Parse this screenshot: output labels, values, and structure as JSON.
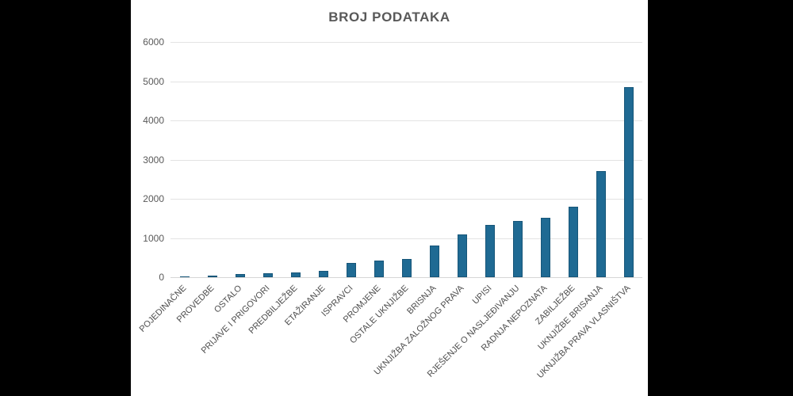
{
  "window": {
    "letterbox_color": "#000000",
    "canvas_color": "#ffffff"
  },
  "chart_data": {
    "type": "bar",
    "title": "BROJ PODATAKA",
    "xlabel": "",
    "ylabel": "",
    "legend_position": "none",
    "grid": "horizontal",
    "ylim": [
      0,
      6000
    ],
    "yticks": [
      0,
      1000,
      2000,
      3000,
      4000,
      5000,
      6000
    ],
    "categories": [
      "POJEDINAČNE",
      "PROVEDBE",
      "OSTALO",
      "PRIJAVE I PRIGOVORI",
      "PREDBILJEŽBE",
      "ETAŽIRANJE",
      "ISPRAVCI",
      "PROMJENE",
      "OSTALE UKNJIŽBE",
      "BRISNJA",
      "UKNJIŽBA ZALOŽNOG PRAVA",
      "UPISI",
      "RJEŠENJE O NASLJEĐIVANJU",
      "RADNJA NEPOZNATA",
      "ZABILJEŽBE",
      "UKNJIŽBE BRISANJA",
      "UKNJIŽBA PRAVA VLASNIŠTVA"
    ],
    "values": [
      20,
      50,
      80,
      100,
      125,
      155,
      370,
      415,
      455,
      800,
      1100,
      1330,
      1430,
      1510,
      1800,
      2700,
      4850
    ],
    "colors": {
      "bar": "#1f6a93",
      "bar_edge": "#0d3e5a",
      "gridline": "#e3e3e3",
      "title_text": "#595959",
      "ytick_text": "#595959",
      "xtick_text": "#4d4d4d"
    }
  }
}
